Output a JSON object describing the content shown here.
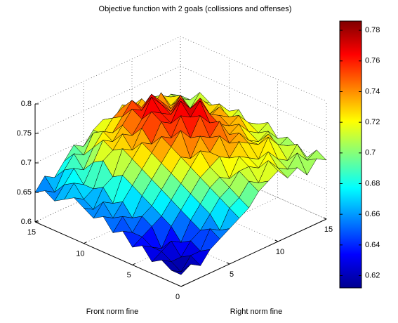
{
  "chart_data": {
    "type": "surface",
    "title": "Objective function with 2 goals (collissions and offenses)",
    "xlabel": "Front norm fine",
    "ylabel": "Right norm fine",
    "x": [
      0,
      1,
      2,
      3,
      4,
      5,
      6,
      7,
      8,
      9,
      10,
      11,
      12,
      13,
      14,
      15
    ],
    "y": [
      0,
      1,
      2,
      3,
      4,
      5,
      6,
      7,
      8,
      9,
      10,
      11,
      12,
      13,
      14,
      15
    ],
    "z": [
      [
        0.62,
        0.63,
        0.62,
        0.64,
        0.65,
        0.66,
        0.67,
        0.68,
        0.7,
        0.71,
        0.72,
        0.7,
        0.71,
        0.69,
        0.71,
        0.7
      ],
      [
        0.62,
        0.61,
        0.63,
        0.63,
        0.66,
        0.65,
        0.68,
        0.69,
        0.71,
        0.7,
        0.73,
        0.71,
        0.7,
        0.72,
        0.7,
        0.71
      ],
      [
        0.63,
        0.62,
        0.62,
        0.64,
        0.65,
        0.67,
        0.69,
        0.7,
        0.72,
        0.72,
        0.71,
        0.73,
        0.71,
        0.7,
        0.72,
        0.69
      ],
      [
        0.62,
        0.63,
        0.64,
        0.63,
        0.66,
        0.68,
        0.7,
        0.71,
        0.7,
        0.73,
        0.72,
        0.71,
        0.74,
        0.72,
        0.71,
        0.7
      ],
      [
        0.64,
        0.63,
        0.62,
        0.65,
        0.67,
        0.69,
        0.71,
        0.72,
        0.73,
        0.72,
        0.74,
        0.73,
        0.72,
        0.73,
        0.7,
        0.71
      ],
      [
        0.63,
        0.64,
        0.65,
        0.66,
        0.68,
        0.7,
        0.72,
        0.74,
        0.73,
        0.75,
        0.73,
        0.74,
        0.72,
        0.71,
        0.72,
        0.7
      ],
      [
        0.65,
        0.64,
        0.66,
        0.67,
        0.69,
        0.71,
        0.73,
        0.72,
        0.75,
        0.74,
        0.76,
        0.73,
        0.74,
        0.72,
        0.71,
        0.72
      ],
      [
        0.64,
        0.66,
        0.65,
        0.68,
        0.7,
        0.72,
        0.74,
        0.76,
        0.74,
        0.77,
        0.75,
        0.74,
        0.73,
        0.74,
        0.72,
        0.71
      ],
      [
        0.66,
        0.65,
        0.67,
        0.69,
        0.71,
        0.73,
        0.75,
        0.74,
        0.77,
        0.76,
        0.78,
        0.75,
        0.74,
        0.73,
        0.72,
        0.7
      ],
      [
        0.65,
        0.67,
        0.66,
        0.7,
        0.72,
        0.74,
        0.73,
        0.76,
        0.75,
        0.78,
        0.76,
        0.77,
        0.73,
        0.74,
        0.71,
        0.72
      ],
      [
        0.66,
        0.65,
        0.68,
        0.69,
        0.73,
        0.72,
        0.75,
        0.77,
        0.76,
        0.75,
        0.77,
        0.74,
        0.75,
        0.72,
        0.73,
        0.71
      ],
      [
        0.67,
        0.66,
        0.67,
        0.71,
        0.72,
        0.74,
        0.73,
        0.75,
        0.78,
        0.76,
        0.74,
        0.76,
        0.73,
        0.74,
        0.72,
        0.7
      ],
      [
        0.66,
        0.68,
        0.67,
        0.7,
        0.73,
        0.72,
        0.74,
        0.76,
        0.75,
        0.77,
        0.75,
        0.73,
        0.74,
        0.71,
        0.72,
        0.71
      ],
      [
        0.65,
        0.67,
        0.69,
        0.68,
        0.71,
        0.73,
        0.72,
        0.74,
        0.76,
        0.74,
        0.73,
        0.75,
        0.72,
        0.73,
        0.7,
        0.72
      ],
      [
        0.66,
        0.65,
        0.68,
        0.7,
        0.69,
        0.72,
        0.71,
        0.73,
        0.74,
        0.72,
        0.74,
        0.71,
        0.73,
        0.72,
        0.71,
        0.7
      ],
      [
        0.65,
        0.67,
        0.66,
        0.68,
        0.7,
        0.69,
        0.71,
        0.72,
        0.71,
        0.73,
        0.72,
        0.7,
        0.72,
        0.7,
        0.71,
        0.7
      ]
    ],
    "xlim": [
      0,
      15
    ],
    "xticks": [
      0,
      5,
      10,
      15
    ],
    "ylim": [
      0,
      15
    ],
    "yticks": [
      5,
      10,
      15
    ],
    "zlim": [
      0.6,
      0.8
    ],
    "zticks": [
      0.6,
      0.65,
      0.7,
      0.75,
      0.8
    ],
    "clim": [
      0.612,
      0.786
    ],
    "cticks": [
      0.62,
      0.64,
      0.66,
      0.68,
      0.7,
      0.72,
      0.74,
      0.76,
      0.78
    ],
    "colormap": "jet",
    "grid": true
  }
}
